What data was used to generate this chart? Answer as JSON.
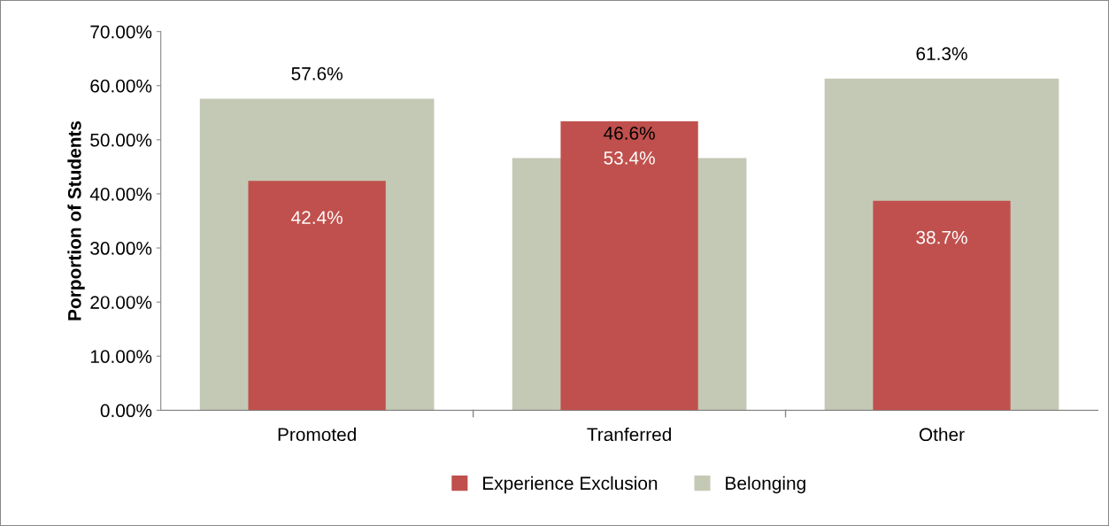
{
  "chart_data": {
    "type": "bar",
    "ylabel": "Porportion of Students",
    "categories": [
      "Promoted",
      "Tranferred",
      "Other"
    ],
    "series": [
      {
        "name": "Experience Exclusion",
        "color": "#c0504d",
        "values": [
          42.4,
          53.4,
          38.7
        ],
        "value_labels": [
          "42.4%",
          "53.4%",
          "38.7%"
        ]
      },
      {
        "name": "Belonging",
        "color": "#c4c9b5",
        "values": [
          57.6,
          46.6,
          61.3
        ],
        "value_labels": [
          "57.6%",
          "46.6%",
          "61.3%"
        ]
      }
    ],
    "ylim": [
      0,
      70
    ],
    "yticks": [
      {
        "value": 0,
        "label": "0.00%"
      },
      {
        "value": 10,
        "label": "10.00%"
      },
      {
        "value": 20,
        "label": "20.00%"
      },
      {
        "value": 30,
        "label": "30.00%"
      },
      {
        "value": 40,
        "label": "40.00%"
      },
      {
        "value": 50,
        "label": "50.00%"
      },
      {
        "value": 60,
        "label": "60.00%"
      },
      {
        "value": 70,
        "label": "70.00%"
      }
    ],
    "grid": false,
    "legend": "bottom"
  }
}
